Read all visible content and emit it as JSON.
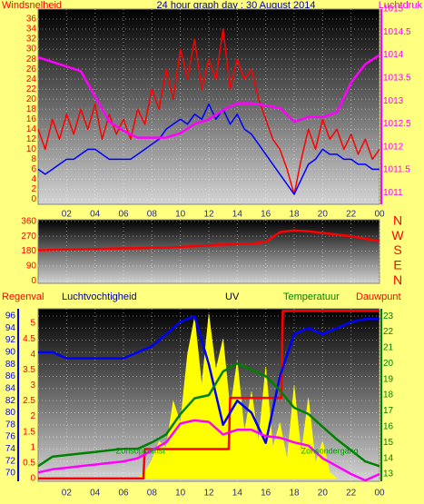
{
  "chart_data": [
    {
      "type": "line",
      "title": "24 hour graph day : 30 August 2014",
      "y_label": "Windsnelheid",
      "y2_label": "Luchtdruk",
      "xlim": [
        0,
        24
      ],
      "xticks": [
        {
          "value": 2,
          "label": "02"
        },
        {
          "value": 4,
          "label": "04"
        },
        {
          "value": 6,
          "label": "06"
        },
        {
          "value": 8,
          "label": "08"
        },
        10,
        12,
        14,
        16,
        18,
        20,
        22,
        {
          "value": 24,
          "label": "00"
        }
      ],
      "ylim": [
        -1,
        38
      ],
      "yticks": [
        0,
        2,
        4,
        6,
        8,
        10,
        12,
        14,
        16,
        18,
        20,
        22,
        24,
        26,
        28,
        30,
        32,
        34,
        36
      ],
      "y2lim": [
        1010.75,
        1015
      ],
      "y2ticks": [
        1011,
        1011.5,
        1012,
        1012.5,
        1013,
        1013.5,
        1014,
        1014.5,
        1015
      ],
      "grid": true,
      "series": [
        {
          "name": "Windsnelheid",
          "color": "#ff0000",
          "axis": "y",
          "x": [
            0,
            0.5,
            1,
            1.5,
            2,
            2.5,
            3,
            3.5,
            4,
            4.5,
            5,
            5.5,
            6,
            6.5,
            7,
            7.5,
            8,
            8.5,
            9,
            9.5,
            10,
            10.5,
            11,
            11.5,
            12,
            12.5,
            13,
            13.5,
            14,
            14.5,
            15,
            15.5,
            16,
            16.5,
            17,
            17.5,
            18,
            18.5,
            19,
            19.5,
            20,
            20.5,
            21,
            21.5,
            22,
            22.5,
            23,
            23.5,
            24
          ],
          "values": [
            14,
            10,
            16,
            12,
            17,
            13,
            18,
            14,
            19,
            12,
            17,
            13,
            16,
            12,
            18,
            15,
            22,
            18,
            26,
            20,
            30,
            24,
            32,
            22,
            28,
            24,
            34,
            22,
            28,
            24,
            26,
            20,
            16,
            12,
            10,
            6,
            1,
            8,
            14,
            10,
            16,
            12,
            14,
            10,
            13,
            9,
            12,
            8,
            10
          ]
        },
        {
          "color": "#0000ff",
          "axis": "y",
          "x": [
            0,
            0.5,
            1,
            1.5,
            2,
            2.5,
            3,
            3.5,
            4,
            4.5,
            5,
            5.5,
            6,
            6.5,
            7,
            7.5,
            8,
            8.5,
            9,
            9.5,
            10,
            10.5,
            11,
            11.5,
            12,
            12.5,
            13,
            13.5,
            14,
            14.5,
            15,
            15.5,
            16,
            16.5,
            17,
            17.5,
            18,
            18.5,
            19,
            19.5,
            20,
            20.5,
            21,
            21.5,
            22,
            22.5,
            23,
            23.5,
            24
          ],
          "values": [
            6,
            5,
            6,
            7,
            8,
            8,
            9,
            10,
            10,
            9,
            8,
            8,
            8,
            8,
            9,
            10,
            11,
            12,
            14,
            15,
            16,
            15,
            17,
            16,
            19,
            16,
            18,
            15,
            17,
            14,
            13,
            11,
            9,
            7,
            5,
            3,
            1,
            4,
            7,
            8,
            10,
            9,
            9,
            8,
            8,
            7,
            7,
            6,
            6
          ]
        },
        {
          "name": "Luchtdruk",
          "color": "#ff00ff",
          "axis": "y2",
          "x": [
            0,
            1,
            2,
            3,
            4,
            5,
            6,
            7,
            8,
            9,
            10,
            11,
            12,
            13,
            14,
            15,
            16,
            17,
            18,
            19,
            20,
            21,
            22,
            23,
            24
          ],
          "values": [
            1013.95,
            1013.85,
            1013.75,
            1013.65,
            1013.1,
            1012.55,
            1012.35,
            1012.2,
            1012.2,
            1012.2,
            1012.3,
            1012.5,
            1012.6,
            1012.8,
            1012.95,
            1012.95,
            1012.9,
            1012.85,
            1012.55,
            1012.65,
            1012.65,
            1012.75,
            1013.4,
            1013.8,
            1014.0
          ]
        }
      ]
    },
    {
      "type": "line",
      "xlim": [
        0,
        24
      ],
      "xticks": [
        {
          "value": 2,
          "label": "02"
        },
        {
          "value": 4,
          "label": "04"
        },
        {
          "value": 6,
          "label": "06"
        },
        {
          "value": 8,
          "label": "08"
        },
        10,
        12,
        14,
        16,
        18,
        20,
        22,
        {
          "value": 24,
          "label": "00"
        }
      ],
      "ylim": [
        -15,
        370
      ],
      "yticks": [
        0,
        90,
        180,
        270,
        360
      ],
      "direction_labels": [
        "N",
        "W",
        "S",
        "E",
        "N"
      ],
      "grid": true,
      "series": [
        {
          "color": "#ff0000",
          "axis": "y",
          "x": [
            0,
            1,
            2,
            3,
            4,
            5,
            6,
            7,
            8,
            9,
            10,
            11,
            12,
            13,
            14,
            15,
            16,
            17,
            18,
            19,
            20,
            21,
            22,
            23,
            24
          ],
          "values": [
            185,
            188,
            190,
            192,
            193,
            195,
            197,
            198,
            200,
            202,
            205,
            210,
            215,
            220,
            222,
            225,
            235,
            295,
            305,
            300,
            290,
            280,
            270,
            255,
            240
          ]
        }
      ]
    },
    {
      "type": "line",
      "xlim": [
        0,
        24
      ],
      "xticks": [
        {
          "value": 2,
          "label": "02"
        },
        {
          "value": 4,
          "label": "04"
        },
        {
          "value": 6,
          "label": "06"
        },
        {
          "value": 8,
          "label": "08"
        },
        10,
        12,
        14,
        16,
        18,
        20,
        22,
        {
          "value": 24,
          "label": "00"
        }
      ],
      "ylim": [
        -0.09,
        5.47
      ],
      "yticks": [
        0,
        0.5,
        1,
        1.5,
        2,
        2.5,
        3,
        3.5,
        4,
        4.5,
        5
      ],
      "y2lim": [
        12.54,
        23.47
      ],
      "y2ticks": [
        13,
        14,
        15,
        16,
        17,
        18,
        19,
        20,
        21,
        22,
        23
      ],
      "y3lim": [
        68.65,
        97.2
      ],
      "y3ticks": [
        70,
        72,
        74,
        76,
        78,
        80,
        82,
        84,
        86,
        88,
        90,
        92,
        94,
        96
      ],
      "grid": true,
      "annotations": [
        {
          "text": "Zonsopkomst",
          "x": 7.2
        },
        {
          "text": "Zonsondergang",
          "x": 20.5
        }
      ],
      "series": [
        {
          "name": "Regenval",
          "color": "#ff0000",
          "axis": "y",
          "x": [
            0,
            7.4,
            7.5,
            13.4,
            13.5,
            17.1,
            17.2,
            24
          ],
          "values": [
            0,
            0,
            0.95,
            0.95,
            2.6,
            2.6,
            5.4,
            5.4
          ]
        },
        {
          "name": "Luchtvochtigheid",
          "color": "#0000ff",
          "axis": "y3",
          "x": [
            0,
            1,
            2,
            3,
            4,
            5,
            6,
            7,
            8,
            9,
            10,
            11,
            12,
            13,
            14,
            15,
            16,
            17,
            18,
            19,
            20,
            21,
            22,
            23,
            24
          ],
          "values": [
            90,
            90,
            89,
            89,
            89,
            89,
            89,
            90,
            91,
            93,
            95,
            96,
            88,
            78,
            82,
            80,
            75,
            86,
            93,
            94,
            93,
            94,
            95,
            95.5,
            95.5
          ]
        },
        {
          "name": "UV",
          "color": "#ffff00",
          "axis": "y",
          "fill": true,
          "x": [
            7,
            7.5,
            8,
            8.5,
            9,
            9.5,
            10,
            10.5,
            11,
            11.5,
            12,
            12.5,
            13,
            13.5,
            14,
            14.5,
            15,
            15.5,
            16,
            16.5,
            17,
            17.5,
            18,
            18.5,
            19,
            19.5,
            20,
            20.5,
            21
          ],
          "values": [
            0,
            0.2,
            0.6,
            1.2,
            1.0,
            2.5,
            1.8,
            4.0,
            5.2,
            3.0,
            5.3,
            3.5,
            4.5,
            2.2,
            3.8,
            1.5,
            2.8,
            1.2,
            3.6,
            1.0,
            1.8,
            0.6,
            3.0,
            0.8,
            2.6,
            0.5,
            1.2,
            0.2,
            0
          ]
        },
        {
          "name": "Temperatuur",
          "color": "#008000",
          "axis": "y2",
          "x": [
            0,
            1,
            2,
            3,
            4,
            5,
            6,
            7,
            8,
            9,
            10,
            11,
            12,
            13,
            14,
            15,
            16,
            17,
            18,
            19,
            20,
            21,
            22,
            23,
            24
          ],
          "values": [
            13.5,
            14.1,
            14.2,
            14.3,
            14.4,
            14.5,
            14.6,
            14.6,
            15,
            15.5,
            16.8,
            17.8,
            18,
            19.5,
            20,
            19.6,
            19.2,
            18.3,
            17.2,
            16.8,
            16,
            15.2,
            14.5,
            13.8,
            13.5
          ]
        },
        {
          "name": "Dauwpunt",
          "color": "#ff00ff",
          "axis": "y2",
          "x": [
            0,
            1,
            2,
            3,
            4,
            5,
            6,
            7,
            8,
            9,
            10,
            11,
            12,
            13,
            14,
            15,
            16,
            17,
            18,
            19,
            20,
            21,
            22,
            23,
            24
          ],
          "values": [
            13.1,
            13.3,
            13.4,
            13.5,
            13.6,
            13.7,
            13.8,
            14,
            14.5,
            15,
            16.2,
            16.4,
            16.3,
            15.5,
            15.8,
            15.8,
            15.4,
            15.3,
            15,
            14.8,
            14,
            13.5,
            13,
            12.6,
            13
          ]
        }
      ]
    }
  ]
}
